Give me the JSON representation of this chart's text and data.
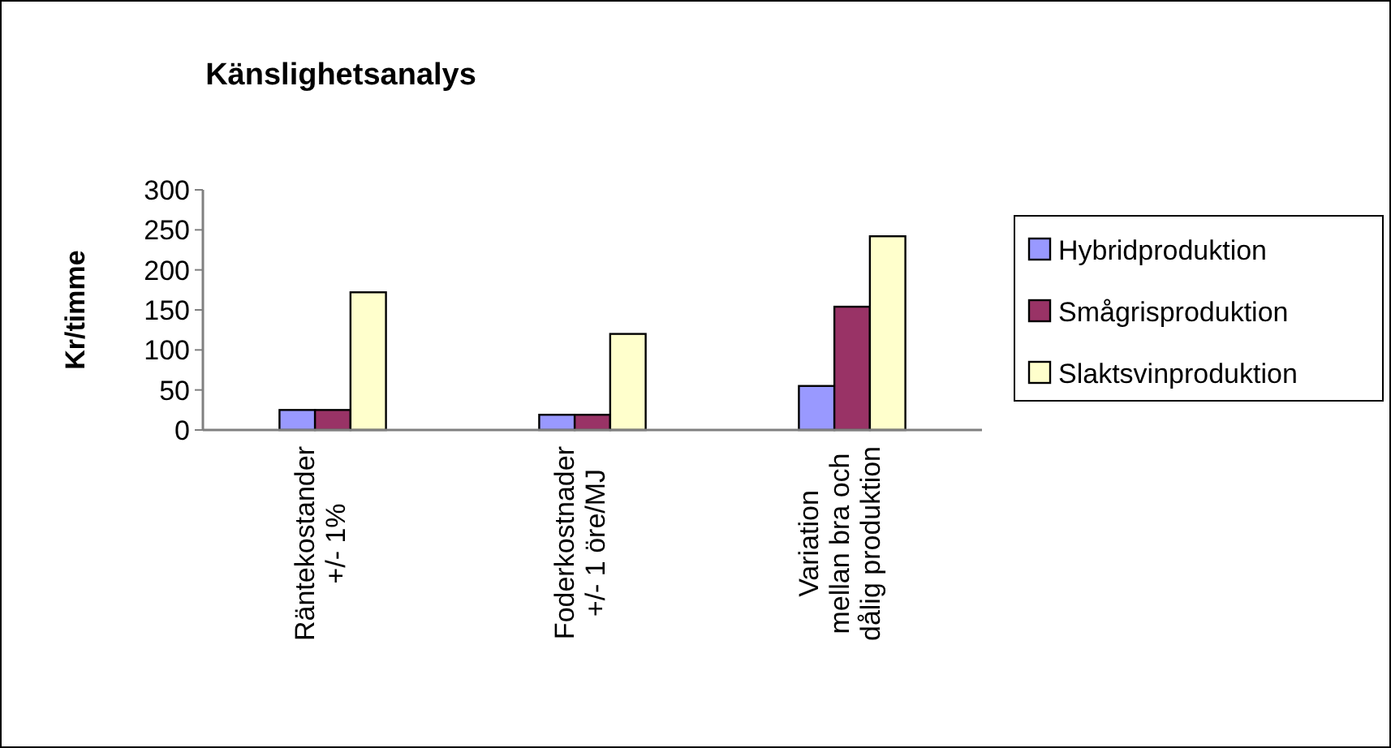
{
  "chart_data": {
    "type": "bar",
    "title": "Känslighetsanalys",
    "ylabel": "Kr/timme",
    "categories": [
      "Räntekostander\n+/- 1%",
      "Foderkostnader\n+/- 1 öre/MJ",
      "Variation\nmellan bra och\ndålig produktion"
    ],
    "series": [
      {
        "name": "Hybridproduktion",
        "color": "#9999ff",
        "values": [
          25,
          19,
          55
        ]
      },
      {
        "name": "Smågrisproduktion",
        "color": "#993366",
        "values": [
          25,
          19,
          154
        ]
      },
      {
        "name": "Slaktsvinproduktion",
        "color": "#ffffcc",
        "values": [
          172,
          120,
          242
        ]
      }
    ],
    "ylim": [
      0,
      300
    ],
    "yticks": [
      0,
      50,
      100,
      150,
      200,
      250,
      300
    ],
    "grid": false,
    "legend": "right"
  }
}
